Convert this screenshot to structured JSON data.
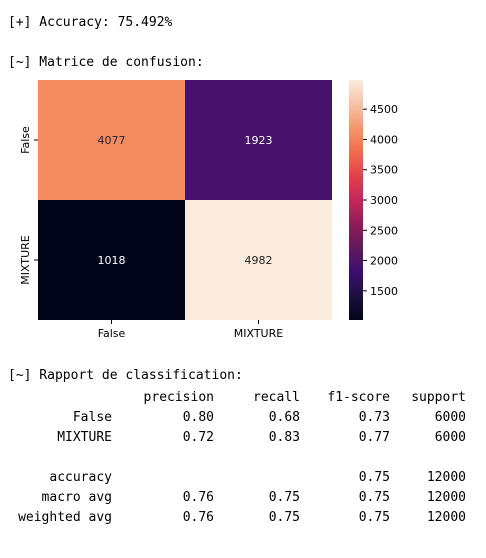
{
  "output": {
    "accuracy_line": "[+] Accuracy: 75.492%",
    "confusion_title": "[~] Matrice de confusion:",
    "report_title": "[~] Rapport de classification:"
  },
  "chart_data": {
    "type": "heatmap",
    "row_labels": [
      "False",
      "MIXTURE"
    ],
    "col_labels": [
      "False",
      "MIXTURE"
    ],
    "values": [
      [
        4077,
        1923
      ],
      [
        1018,
        4982
      ]
    ],
    "colorbar": {
      "min": 1018,
      "max": 4982,
      "ticks": [
        "1500",
        "2000",
        "2500",
        "3000",
        "3500",
        "4000",
        "4500"
      ],
      "tick_values": [
        1500,
        2000,
        2500,
        3000,
        3500,
        4000,
        4500
      ]
    },
    "colormap": "rocket",
    "colors": [
      "#03051a",
      "#1c1040",
      "#3b0f70",
      "#611a5d",
      "#8f1d56",
      "#c4285a",
      "#e43f4d",
      "#f16d4b",
      "#f4976a",
      "#f6c2a7",
      "#faebdd"
    ]
  },
  "report": {
    "header": [
      "",
      "precision",
      "recall",
      "f1-score",
      "support"
    ],
    "rows": [
      [
        "False",
        "0.80",
        "0.68",
        "0.73",
        "6000"
      ],
      [
        "MIXTURE",
        "0.72",
        "0.83",
        "0.77",
        "6000"
      ],
      [
        "",
        "",
        "",
        "",
        ""
      ],
      [
        "accuracy",
        "",
        "",
        "0.75",
        "12000"
      ],
      [
        "macro avg",
        "0.76",
        "0.75",
        "0.75",
        "12000"
      ],
      [
        "weighted avg",
        "0.76",
        "0.75",
        "0.75",
        "12000"
      ]
    ]
  }
}
